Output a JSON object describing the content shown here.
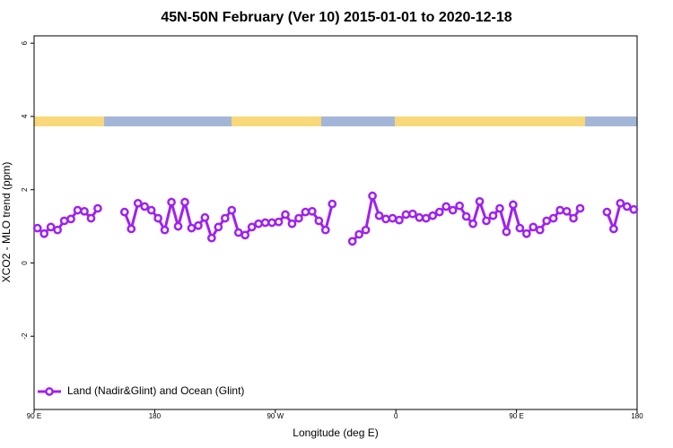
{
  "chart_data": {
    "type": "line",
    "title": "45N-50N February (Ver 10)   2015-01-01 to 2020-12-18",
    "x_label": "Longitude (deg E)",
    "y_label": "XCO2 - MLO trend (ppm)",
    "x": [
      92.5,
      97.5,
      102.5,
      107.5,
      112.5,
      117.5,
      122.5,
      127.5,
      132.5,
      137.5,
      142.5,
      147.5,
      152.5,
      157.5,
      162.5,
      167.5,
      172.5,
      177.5,
      182.5,
      187.5,
      192.5,
      197.5,
      202.5,
      207.5,
      212.5,
      217.5,
      222.5,
      227.5,
      232.5,
      237.5,
      242.5,
      247.5,
      252.5,
      257.5,
      262.5,
      267.5,
      272.5,
      277.5,
      282.5,
      287.5,
      292.5,
      297.5,
      302.5,
      307.5,
      312.5,
      317.5,
      322.5,
      327.5,
      332.5,
      337.5,
      342.5,
      347.5,
      352.5,
      357.5,
      362.5,
      367.5,
      372.5,
      377.5,
      382.5,
      387.5,
      392.5,
      397.5,
      402.5,
      407.5,
      412.5,
      417.5,
      422.5,
      427.5,
      432.5,
      437.5,
      442.5,
      447.5,
      452.5,
      457.5,
      462.5,
      467.5,
      472.5,
      477.5,
      482.5,
      487.5,
      492.5,
      497.5,
      502.5,
      507.5,
      512.5,
      517.5,
      522.5,
      527.5,
      532.5,
      537.5
    ],
    "series": [
      {
        "name": "Land (Nadir&Glint) and Ocean (Glint)",
        "color": "#a020f0",
        "values": [
          0.95,
          0.8,
          0.98,
          0.9,
          1.15,
          1.2,
          1.44,
          1.41,
          1.22,
          1.49,
          null,
          null,
          null,
          1.39,
          0.93,
          1.63,
          1.54,
          1.44,
          1.22,
          0.9,
          1.66,
          1.0,
          1.66,
          0.95,
          1.02,
          1.24,
          0.68,
          0.98,
          1.22,
          1.44,
          0.83,
          0.76,
          0.98,
          1.07,
          1.1,
          1.1,
          1.12,
          1.32,
          1.07,
          1.22,
          1.39,
          1.41,
          1.15,
          0.9,
          1.61,
          null,
          null,
          0.59,
          0.78,
          0.9,
          1.83,
          1.29,
          1.2,
          1.22,
          1.17,
          1.32,
          1.34,
          1.24,
          1.22,
          1.29,
          1.39,
          1.54,
          1.44,
          1.56,
          1.27,
          1.07,
          1.68,
          1.15,
          1.29,
          1.49,
          0.85,
          1.59,
          0.95,
          0.8,
          0.98,
          0.9,
          1.15,
          1.22,
          1.44,
          1.41,
          1.22,
          1.49,
          null,
          null,
          null,
          1.39,
          0.93,
          1.63,
          1.54,
          1.46
        ]
      }
    ],
    "xlim": [
      90,
      540
    ],
    "xticks": [
      {
        "value": 90,
        "label": "90 E"
      },
      180,
      {
        "value": 270,
        "label": "90 W"
      },
      {
        "value": 360,
        "label": "0"
      },
      {
        "value": 450,
        "label": "90 E"
      },
      {
        "value": 540,
        "label": "180"
      }
    ],
    "ylim": [
      -4,
      6.2
    ],
    "yticks": [
      -2,
      0,
      2,
      4,
      6
    ],
    "legend": "bottom-left"
  }
}
